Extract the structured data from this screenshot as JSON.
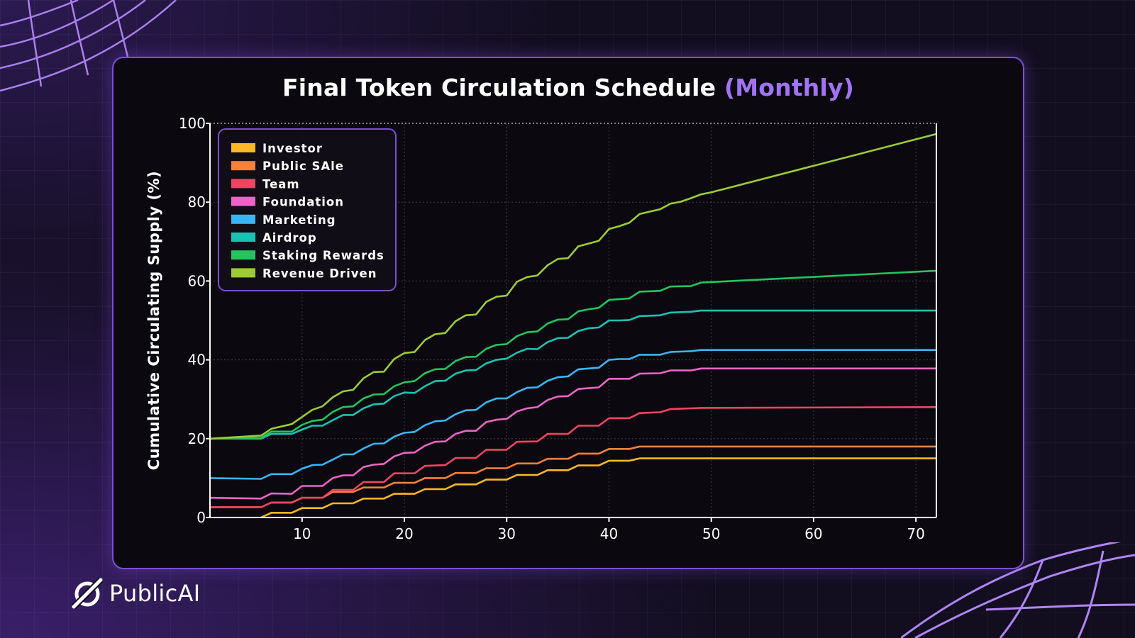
{
  "page": {
    "brand_name": "PublicAI",
    "title_main": "Final Token Circulation Schedule",
    "title_accent": "(Monthly)"
  },
  "colors": {
    "background": "#120e1f",
    "card_border": "#7b4fd6",
    "title_accent": "#a273f5"
  },
  "chart_data": {
    "type": "line",
    "title": "Final Token Circulation Schedule (Monthly)",
    "xlabel": "",
    "ylabel": "Cumulative Circulating Supply (%)",
    "xlim": [
      1,
      72
    ],
    "ylim": [
      0,
      100
    ],
    "xticks": [
      10,
      20,
      30,
      40,
      50,
      60,
      70
    ],
    "yticks": [
      0,
      20,
      40,
      60,
      80,
      100
    ],
    "grid": true,
    "legend_position": "top-left",
    "series": [
      {
        "name": "Investor",
        "color": "#fbb724",
        "points": [
          [
            6,
            0
          ],
          [
            7,
            1.2
          ],
          [
            9,
            1.2
          ],
          [
            10,
            2.4
          ],
          [
            12,
            2.4
          ],
          [
            13,
            3.6
          ],
          [
            15,
            3.6
          ],
          [
            16,
            4.8
          ],
          [
            18,
            4.8
          ],
          [
            19,
            6
          ],
          [
            21,
            6
          ],
          [
            22,
            7.2
          ],
          [
            24,
            7.2
          ],
          [
            25,
            8.4
          ],
          [
            27,
            8.4
          ],
          [
            28,
            9.6
          ],
          [
            30,
            9.6
          ],
          [
            31,
            10.8
          ],
          [
            33,
            10.8
          ],
          [
            34,
            12
          ],
          [
            36,
            12
          ],
          [
            37,
            13.2
          ],
          [
            39,
            13.2
          ],
          [
            40,
            14.4
          ],
          [
            42,
            14.4
          ],
          [
            43,
            15
          ],
          [
            72,
            15
          ]
        ]
      },
      {
        "name": "Public SAle",
        "color": "#f7803a",
        "points": [
          [
            1,
            2.6
          ],
          [
            6,
            2.6
          ],
          [
            7,
            3.8
          ],
          [
            9,
            3.8
          ],
          [
            10,
            5
          ],
          [
            12,
            5
          ],
          [
            13,
            6.5
          ],
          [
            15,
            6.5
          ],
          [
            16,
            7.6
          ],
          [
            18,
            7.6
          ],
          [
            19,
            8.8
          ],
          [
            21,
            8.8
          ],
          [
            22,
            10
          ],
          [
            24,
            10
          ],
          [
            25,
            11.3
          ],
          [
            27,
            11.3
          ],
          [
            28,
            12.5
          ],
          [
            30,
            12.5
          ],
          [
            31,
            13.7
          ],
          [
            33,
            13.7
          ],
          [
            34,
            14.9
          ],
          [
            36,
            14.9
          ],
          [
            37,
            16.2
          ],
          [
            39,
            16.2
          ],
          [
            40,
            17.4
          ],
          [
            42,
            17.4
          ],
          [
            43,
            18
          ],
          [
            72,
            18
          ]
        ]
      },
      {
        "name": "Team",
        "color": "#f04462",
        "points": [
          [
            1,
            2.6
          ],
          [
            6,
            2.6
          ],
          [
            7,
            3.8
          ],
          [
            9,
            3.8
          ],
          [
            10,
            5
          ],
          [
            12,
            5
          ],
          [
            13,
            7
          ],
          [
            15,
            7
          ],
          [
            16,
            9
          ],
          [
            18,
            9
          ],
          [
            19,
            11.2
          ],
          [
            21,
            11.2
          ],
          [
            22,
            13.1
          ],
          [
            24,
            13.3
          ],
          [
            25,
            15.1
          ],
          [
            27,
            15.1
          ],
          [
            28,
            17.2
          ],
          [
            30,
            17.2
          ],
          [
            31,
            19.2
          ],
          [
            33,
            19.3
          ],
          [
            34,
            21.2
          ],
          [
            36,
            21.2
          ],
          [
            37,
            23.3
          ],
          [
            39,
            23.3
          ],
          [
            40,
            25.2
          ],
          [
            42,
            25.2
          ],
          [
            43,
            26.5
          ],
          [
            45,
            26.7
          ],
          [
            46,
            27.5
          ],
          [
            48,
            27.7
          ],
          [
            49,
            27.8
          ],
          [
            72,
            28
          ]
        ]
      },
      {
        "name": "Foundation",
        "color": "#ec64c7",
        "points": [
          [
            1,
            5
          ],
          [
            6,
            4.8
          ],
          [
            7,
            6.1
          ],
          [
            9,
            6
          ],
          [
            10,
            8
          ],
          [
            12,
            8
          ],
          [
            13,
            10
          ],
          [
            14,
            10.7
          ],
          [
            15,
            10.7
          ],
          [
            16,
            12.8
          ],
          [
            17,
            13.4
          ],
          [
            18,
            13.6
          ],
          [
            19,
            15.5
          ],
          [
            20,
            16.4
          ],
          [
            21,
            16.5
          ],
          [
            22,
            18.2
          ],
          [
            23,
            19.2
          ],
          [
            24,
            19.3
          ],
          [
            25,
            21.2
          ],
          [
            26,
            22
          ],
          [
            27,
            22
          ],
          [
            28,
            24.2
          ],
          [
            29,
            24.8
          ],
          [
            30,
            25
          ],
          [
            31,
            26.9
          ],
          [
            32,
            27.7
          ],
          [
            33,
            28
          ],
          [
            34,
            29.8
          ],
          [
            35,
            30.7
          ],
          [
            36,
            30.8
          ],
          [
            37,
            32.6
          ],
          [
            38,
            32.8
          ],
          [
            39,
            33
          ],
          [
            40,
            35.2
          ],
          [
            41,
            35.2
          ],
          [
            42,
            35.2
          ],
          [
            43,
            36.5
          ],
          [
            45,
            36.6
          ],
          [
            46,
            37.3
          ],
          [
            48,
            37.3
          ],
          [
            49,
            37.8
          ],
          [
            72,
            37.8
          ]
        ]
      },
      {
        "name": "Marketing",
        "color": "#38b6f4",
        "points": [
          [
            1,
            10
          ],
          [
            6,
            9.8
          ],
          [
            7,
            11
          ],
          [
            9,
            11
          ],
          [
            10,
            12.4
          ],
          [
            11,
            13.3
          ],
          [
            12,
            13.4
          ],
          [
            13,
            14.7
          ],
          [
            14,
            16
          ],
          [
            15,
            16
          ],
          [
            16,
            17.5
          ],
          [
            17,
            18.7
          ],
          [
            18,
            18.8
          ],
          [
            19,
            20.5
          ],
          [
            20,
            21.5
          ],
          [
            21,
            21.7
          ],
          [
            22,
            23.4
          ],
          [
            23,
            24.4
          ],
          [
            24,
            24.6
          ],
          [
            25,
            26.2
          ],
          [
            26,
            27.2
          ],
          [
            27,
            27.3
          ],
          [
            28,
            29.2
          ],
          [
            29,
            30.2
          ],
          [
            30,
            30.2
          ],
          [
            31,
            31.8
          ],
          [
            32,
            32.9
          ],
          [
            33,
            33
          ],
          [
            34,
            34.7
          ],
          [
            35,
            35.6
          ],
          [
            36,
            35.8
          ],
          [
            37,
            37.6
          ],
          [
            38,
            37.8
          ],
          [
            39,
            38
          ],
          [
            40,
            40
          ],
          [
            41,
            40.2
          ],
          [
            42,
            40.2
          ],
          [
            43,
            41.3
          ],
          [
            45,
            41.3
          ],
          [
            46,
            42
          ],
          [
            48,
            42.2
          ],
          [
            49,
            42.5
          ],
          [
            72,
            42.5
          ]
        ]
      },
      {
        "name": "Airdrop",
        "color": "#19c3b2",
        "points": [
          [
            1,
            20
          ],
          [
            6,
            20
          ],
          [
            7,
            21.2
          ],
          [
            9,
            21.2
          ],
          [
            10,
            22.3
          ],
          [
            11,
            23.3
          ],
          [
            12,
            23.3
          ],
          [
            13,
            24.7
          ],
          [
            14,
            26
          ],
          [
            15,
            26
          ],
          [
            16,
            27.7
          ],
          [
            17,
            28.7
          ],
          [
            18,
            28.9
          ],
          [
            19,
            30.8
          ],
          [
            20,
            31.7
          ],
          [
            21,
            31.6
          ],
          [
            22,
            33.3
          ],
          [
            23,
            34.6
          ],
          [
            24,
            34.7
          ],
          [
            25,
            36.5
          ],
          [
            26,
            37.3
          ],
          [
            27,
            37.4
          ],
          [
            28,
            39.1
          ],
          [
            29,
            40
          ],
          [
            30,
            40.3
          ],
          [
            31,
            41.8
          ],
          [
            32,
            42.8
          ],
          [
            33,
            42.7
          ],
          [
            34,
            44.5
          ],
          [
            35,
            45.5
          ],
          [
            36,
            45.6
          ],
          [
            37,
            47.3
          ],
          [
            38,
            48
          ],
          [
            39,
            48.2
          ],
          [
            40,
            50
          ],
          [
            41,
            50
          ],
          [
            42,
            50.1
          ],
          [
            43,
            51.1
          ],
          [
            45,
            51.3
          ],
          [
            46,
            52
          ],
          [
            48,
            52.2
          ],
          [
            49,
            52.5
          ],
          [
            72,
            52.5
          ]
        ]
      },
      {
        "name": "Staking Rewards",
        "color": "#22c55e",
        "points": [
          [
            1,
            20
          ],
          [
            6,
            20.2
          ],
          [
            7,
            21.8
          ],
          [
            9,
            21.8
          ],
          [
            10,
            23.5
          ],
          [
            11,
            24.5
          ],
          [
            12,
            24.8
          ],
          [
            13,
            26.8
          ],
          [
            14,
            28
          ],
          [
            15,
            28.2
          ],
          [
            16,
            30.2
          ],
          [
            17,
            31.2
          ],
          [
            18,
            31.3
          ],
          [
            19,
            33.3
          ],
          [
            20,
            34.3
          ],
          [
            21,
            34.6
          ],
          [
            22,
            36.6
          ],
          [
            23,
            37.6
          ],
          [
            24,
            37.7
          ],
          [
            25,
            39.7
          ],
          [
            26,
            40.7
          ],
          [
            27,
            40.8
          ],
          [
            28,
            42.8
          ],
          [
            29,
            43.8
          ],
          [
            30,
            44
          ],
          [
            31,
            46
          ],
          [
            32,
            47
          ],
          [
            33,
            47.2
          ],
          [
            34,
            49.2
          ],
          [
            35,
            50.2
          ],
          [
            36,
            50.3
          ],
          [
            37,
            52.3
          ],
          [
            38,
            52.8
          ],
          [
            39,
            53.2
          ],
          [
            40,
            55.2
          ],
          [
            42,
            55.6
          ],
          [
            43,
            57.3
          ],
          [
            45,
            57.5
          ],
          [
            46,
            58.6
          ],
          [
            48,
            58.7
          ],
          [
            49,
            59.6
          ],
          [
            72,
            62.6
          ]
        ]
      },
      {
        "name": "Revenue Driven",
        "color": "#9ccc32",
        "points": [
          [
            1,
            20
          ],
          [
            6,
            20.8
          ],
          [
            7,
            22.5
          ],
          [
            9,
            23.7
          ],
          [
            10,
            25.5
          ],
          [
            11,
            27.3
          ],
          [
            12,
            28.2
          ],
          [
            13,
            30.5
          ],
          [
            14,
            32
          ],
          [
            15,
            32.4
          ],
          [
            16,
            35.3
          ],
          [
            17,
            36.9
          ],
          [
            18,
            37
          ],
          [
            19,
            40.2
          ],
          [
            20,
            41.7
          ],
          [
            21,
            42
          ],
          [
            22,
            45
          ],
          [
            23,
            46.5
          ],
          [
            24,
            46.8
          ],
          [
            25,
            49.8
          ],
          [
            26,
            51.3
          ],
          [
            27,
            51.5
          ],
          [
            28,
            54.7
          ],
          [
            29,
            56
          ],
          [
            30,
            56.3
          ],
          [
            31,
            59.8
          ],
          [
            32,
            61
          ],
          [
            33,
            61.4
          ],
          [
            34,
            64
          ],
          [
            35,
            65.6
          ],
          [
            36,
            65.8
          ],
          [
            37,
            68.8
          ],
          [
            38,
            69.5
          ],
          [
            39,
            70.2
          ],
          [
            40,
            73.2
          ],
          [
            41,
            73.9
          ],
          [
            42,
            74.8
          ],
          [
            43,
            77
          ],
          [
            44,
            77.6
          ],
          [
            45,
            78.2
          ],
          [
            46,
            79.6
          ],
          [
            47,
            80.1
          ],
          [
            48,
            81
          ],
          [
            49,
            82
          ],
          [
            50,
            82.5
          ],
          [
            72,
            97.3
          ]
        ]
      }
    ]
  }
}
